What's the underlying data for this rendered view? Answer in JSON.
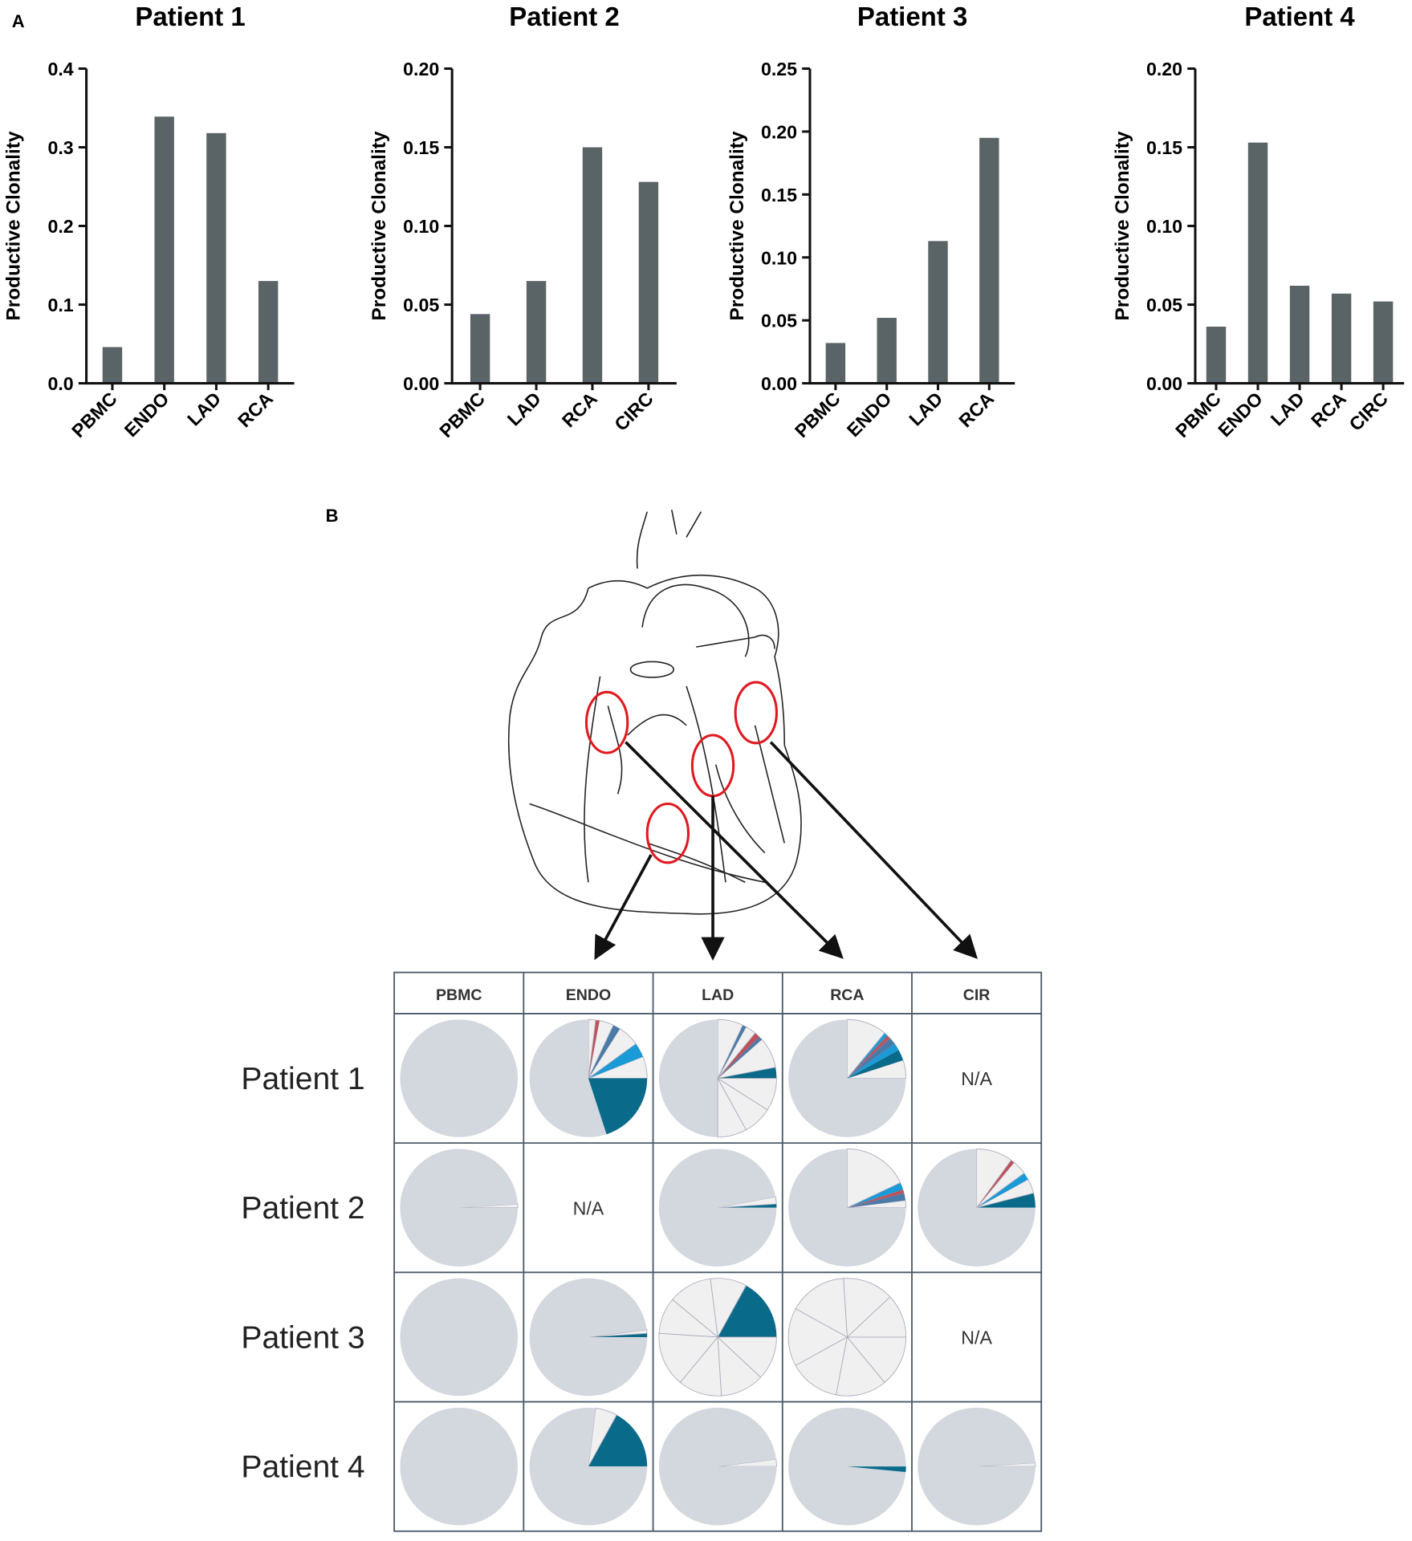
{
  "panel_labels": [
    "A",
    "B"
  ],
  "chart_data": [
    {
      "type": "bar",
      "title": "Patient 1",
      "y_label": "Productive Clonality",
      "color": "#5a6366",
      "categories": [
        "PBMC",
        "ENDO",
        "LAD",
        "RCA"
      ],
      "values": [
        0.046,
        0.339,
        0.318,
        0.13
      ],
      "ylim": [
        0,
        0.4
      ],
      "yticks": [
        {
          "value": 0,
          "label": "0.0"
        },
        0.1,
        0.2,
        0.3,
        0.4
      ]
    },
    {
      "type": "bar",
      "title": "Patient 2",
      "y_label": "Productive Clonality",
      "color": "#5a6366",
      "categories": [
        "PBMC",
        "LAD",
        "RCA",
        "CIRC"
      ],
      "values": [
        0.044,
        0.065,
        0.15,
        0.128
      ],
      "ylim": [
        0,
        0.2
      ],
      "yticks": [
        {
          "value": 0,
          "label": "0.00"
        },
        {
          "value": 0.05,
          "label": "0.05"
        },
        {
          "value": 0.1,
          "label": "0.10"
        },
        0.15,
        {
          "value": 0.2,
          "label": "0.20"
        }
      ]
    },
    {
      "type": "bar",
      "title": "Patient 3",
      "y_label": "Productive Clonality",
      "color": "#5a6366",
      "categories": [
        "PBMC",
        "ENDO",
        "LAD",
        "RCA"
      ],
      "values": [
        0.032,
        0.052,
        0.113,
        0.195
      ],
      "ylim": [
        0,
        0.25
      ],
      "yticks": [
        {
          "value": 0,
          "label": "0.00"
        },
        {
          "value": 0.05,
          "label": "0.05"
        },
        {
          "value": 0.1,
          "label": "0.10"
        },
        0.15,
        {
          "value": 0.2,
          "label": "0.20"
        },
        0.25
      ]
    },
    {
      "type": "bar",
      "title": "Patient 4",
      "y_label": "Productive Clonality",
      "color": "#5a6366",
      "categories": [
        "PBMC",
        "ENDO",
        "LAD",
        "RCA",
        "CIRC"
      ],
      "values": [
        0.036,
        0.153,
        0.062,
        0.057,
        0.052
      ],
      "ylim": [
        0,
        0.2
      ],
      "yticks": [
        {
          "value": 0,
          "label": "0.00"
        },
        {
          "value": 0.05,
          "label": "0.05"
        },
        {
          "value": 0.1,
          "label": "0.10"
        },
        0.15,
        {
          "value": 0.2,
          "label": "0.20"
        }
      ]
    }
  ],
  "pie_table": {
    "type": "pie",
    "columns": [
      "PBMC",
      "ENDO",
      "LAD",
      "RCA",
      "CIR"
    ],
    "rows": [
      {
        "label": "Patient 1",
        "cells": [
          [
            {
              "value": 100,
              "color": "#d3d7de"
            }
          ],
          [
            {
              "value": 6,
              "color": "#f0f0f0"
            },
            {
              "value": 4,
              "color": "#1a9ad6"
            },
            {
              "value": 6,
              "color": "#f0f0f0"
            },
            {
              "value": 2,
              "color": "#4a7aa8"
            },
            {
              "value": 4,
              "color": "#f0f0f0"
            },
            {
              "value": 1,
              "color": "#c0505a"
            },
            {
              "value": 2,
              "color": "#f0f0f0"
            },
            {
              "value": 55,
              "color": "#d3d7de"
            },
            {
              "value": 20,
              "color": "#0a6a8a"
            }
          ],
          [
            {
              "value": 3,
              "color": "#0a6a8a"
            },
            {
              "value": 8.5,
              "color": "#f0f0f0"
            },
            {
              "value": 1,
              "color": "#4a7aa8"
            },
            {
              "value": 1.5,
              "color": "#c0505a"
            },
            {
              "value": 3,
              "color": "#f0f0f0"
            },
            {
              "value": 1,
              "color": "#4a7aa8"
            },
            {
              "value": 7,
              "color": "#f0f0f0"
            },
            {
              "value": 50,
              "color": "#d3d7de"
            },
            {
              "value": 8,
              "color": "#f0f0f0"
            },
            {
              "value": 8,
              "color": "#f0f0f0"
            },
            {
              "value": 9,
              "color": "#f0f0f0"
            }
          ],
          [
            {
              "value": 5,
              "color": "#f0f0f0"
            },
            {
              "value": 3,
              "color": "#0a6a8a"
            },
            {
              "value": 2,
              "color": "#1a9ad6"
            },
            {
              "value": 2,
              "color": "#4a7aa8"
            },
            {
              "value": 1,
              "color": "#c0505a"
            },
            {
              "value": 1,
              "color": "#1a9ad6"
            },
            {
              "value": 11,
              "color": "#f0f0f0"
            },
            {
              "value": 75,
              "color": "#d3d7de"
            }
          ],
          "N/A"
        ]
      },
      {
        "label": "Patient 2",
        "cells": [
          [
            {
              "value": 1,
              "color": "#f0f0f0"
            },
            {
              "value": 99,
              "color": "#d3d7de"
            }
          ],
          "N/A",
          [
            {
              "value": 1,
              "color": "#0a6a8a"
            },
            {
              "value": 2,
              "color": "#f0f0f0"
            },
            {
              "value": 97,
              "color": "#d3d7de"
            }
          ],
          [
            {
              "value": 2,
              "color": "#f0f0f0"
            },
            {
              "value": 2,
              "color": "#4a7aa8"
            },
            {
              "value": 1,
              "color": "#c0505a"
            },
            {
              "value": 2,
              "color": "#1a9ad6"
            },
            {
              "value": 18,
              "color": "#f0f0f0"
            },
            {
              "value": 75,
              "color": "#d3d7de"
            }
          ],
          [
            {
              "value": 4,
              "color": "#0a6a8a"
            },
            {
              "value": 4,
              "color": "#f0f0f0"
            },
            {
              "value": 2,
              "color": "#1a9ad6"
            },
            {
              "value": 4,
              "color": "#f0f0f0"
            },
            {
              "value": 1,
              "color": "#c0505a"
            },
            {
              "value": 10,
              "color": "#f0f0f0"
            },
            {
              "value": 75,
              "color": "#d3d7de"
            }
          ]
        ]
      },
      {
        "label": "Patient 3",
        "cells": [
          [
            {
              "value": 100,
              "color": "#d3d7de"
            }
          ],
          [
            {
              "value": 1,
              "color": "#0a6a8a"
            },
            {
              "value": 1,
              "color": "#f0f0f0"
            },
            {
              "value": 98,
              "color": "#d3d7de"
            }
          ],
          [
            {
              "value": 17,
              "color": "#0a6a8a"
            },
            {
              "value": 10,
              "color": "#f0f0f0"
            },
            {
              "value": 12,
              "color": "#f0f0f0"
            },
            {
              "value": 10,
              "color": "#f0f0f0"
            },
            {
              "value": 15,
              "color": "#f0f0f0"
            },
            {
              "value": 12,
              "color": "#f0f0f0"
            },
            {
              "value": 12,
              "color": "#f0f0f0"
            },
            {
              "value": 12,
              "color": "#f0f0f0"
            }
          ],
          [
            {
              "value": 12,
              "color": "#f0f0f0"
            },
            {
              "value": 14,
              "color": "#f0f0f0"
            },
            {
              "value": 16,
              "color": "#f0f0f0"
            },
            {
              "value": 16,
              "color": "#f0f0f0"
            },
            {
              "value": 14,
              "color": "#f0f0f0"
            },
            {
              "value": 14,
              "color": "#f0f0f0"
            },
            {
              "value": 14,
              "color": "#f0f0f0"
            }
          ],
          "N/A"
        ]
      },
      {
        "label": "Patient 4",
        "cells": [
          [
            {
              "value": 100,
              "color": "#d3d7de"
            }
          ],
          [
            {
              "value": 17,
              "color": "#0a6a8a"
            },
            {
              "value": 6,
              "color": "#f0f0f0"
            },
            {
              "value": 77,
              "color": "#d3d7de"
            }
          ],
          [
            {
              "value": 2,
              "color": "#f0f0f0"
            },
            {
              "value": 98,
              "color": "#d3d7de"
            }
          ],
          [
            {
              "value": 98.5,
              "color": "#d3d7de"
            },
            {
              "value": 1.5,
              "color": "#0a6a8a"
            }
          ],
          [
            {
              "value": 1,
              "color": "#f0f0f0"
            },
            {
              "value": 99,
              "color": "#d3d7de"
            }
          ]
        ]
      }
    ]
  }
}
